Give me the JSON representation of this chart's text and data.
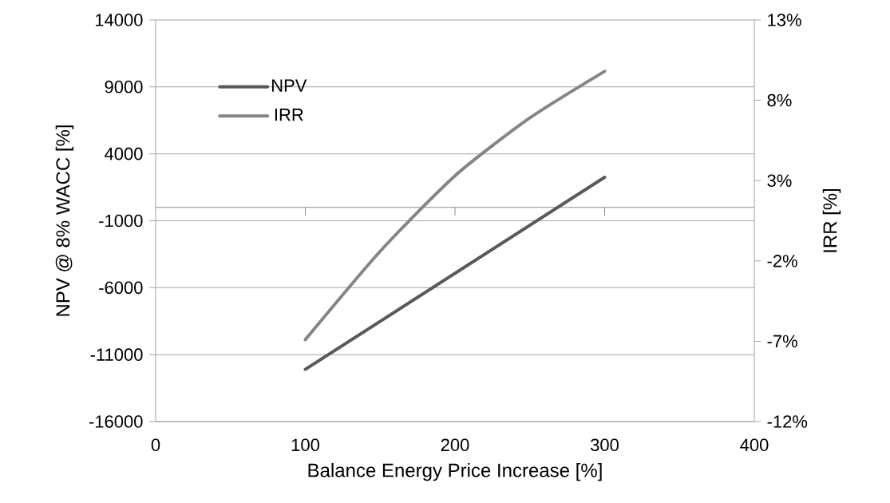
{
  "chart_data": {
    "type": "line",
    "xlabel": "Balance Energy Price Increase [%]",
    "ylabel": "NPV  @ 8% WACC [%]",
    "y2label": "IRR [%]",
    "series": [
      {
        "name": "NPV",
        "color": "#595959",
        "x": [
          100,
          300
        ],
        "values": [
          -12100,
          2250
        ]
      },
      {
        "name": "IRR",
        "color": "#858585",
        "axis": "y2",
        "x": [
          100,
          150,
          200,
          250,
          300
        ],
        "values": [
          -6.9,
          -1.4,
          3.3,
          6.9,
          9.8
        ]
      }
    ],
    "xlim": [
      0,
      400
    ],
    "xticks": [
      0,
      100,
      200,
      300,
      400
    ],
    "ylim": [
      -16000,
      14000
    ],
    "yticks": [
      -16000,
      -11000,
      -6000,
      -1000,
      4000,
      9000,
      14000
    ],
    "y2lim": [
      -12,
      13
    ],
    "y2ticks": [
      {
        "value": -12,
        "label": "-12%"
      },
      {
        "value": -7,
        "label": "-7%"
      },
      {
        "value": -2,
        "label": "-2%"
      },
      {
        "value": 3,
        "label": "3%"
      },
      {
        "value": 8,
        "label": "8%"
      },
      {
        "value": 13,
        "label": "13%"
      }
    ],
    "ref_lines": [
      {
        "axis": "y",
        "value": 0,
        "color": "#8c8c8c"
      }
    ],
    "grid": "y",
    "legend": "top left",
    "marker": "none",
    "line_style": "solid"
  }
}
